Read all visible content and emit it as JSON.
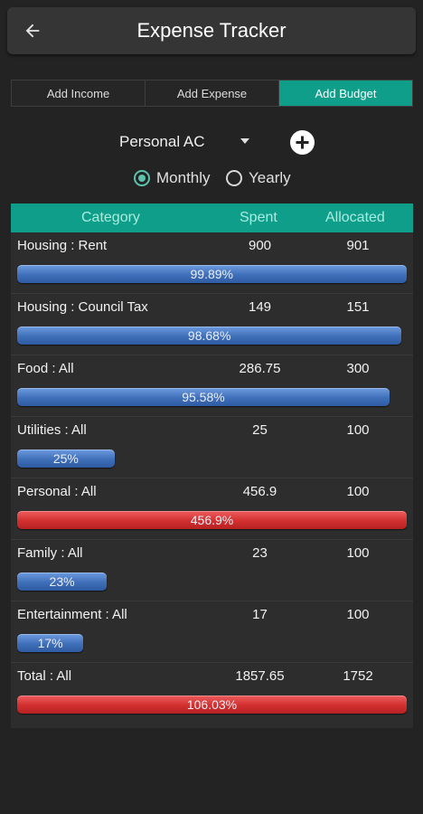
{
  "appbar": {
    "title": "Expense Tracker",
    "back_icon": "arrow-left-icon"
  },
  "tabs": [
    {
      "label": "Add Income",
      "active": false
    },
    {
      "label": "Add Expense",
      "active": false
    },
    {
      "label": "Add Budget",
      "active": true
    }
  ],
  "account": {
    "selected": "Personal AC",
    "add_icon": "plus-circle-icon"
  },
  "period": {
    "options": [
      {
        "label": "Monthly",
        "checked": true
      },
      {
        "label": "Yearly",
        "checked": false
      }
    ]
  },
  "colors": {
    "accent": "#0f9e8a",
    "bar_normal": "#3f6fb8",
    "bar_over": "#d22f2f",
    "radio": "#5cc3ae"
  },
  "table": {
    "headers": {
      "category": "Category",
      "spent": "Spent",
      "allocated": "Allocated"
    },
    "rows": [
      {
        "category": "Housing : Rent",
        "spent": "900",
        "allocated": "901",
        "percent_label": "99.89%",
        "percent": 99.89
      },
      {
        "category": "Housing : Council Tax",
        "spent": "149",
        "allocated": "151",
        "percent_label": "98.68%",
        "percent": 98.68
      },
      {
        "category": "Food : All",
        "spent": "286.75",
        "allocated": "300",
        "percent_label": "95.58%",
        "percent": 95.58
      },
      {
        "category": "Utilities : All",
        "spent": "25",
        "allocated": "100",
        "percent_label": "25%",
        "percent": 25
      },
      {
        "category": "Personal : All",
        "spent": "456.9",
        "allocated": "100",
        "percent_label": "456.9%",
        "percent": 456.9
      },
      {
        "category": "Family : All",
        "spent": "23",
        "allocated": "100",
        "percent_label": "23%",
        "percent": 23
      },
      {
        "category": "Entertainment : All",
        "spent": "17",
        "allocated": "100",
        "percent_label": "17%",
        "percent": 17
      },
      {
        "category": "Total : All",
        "spent": "1857.65",
        "allocated": "1752",
        "percent_label": "106.03%",
        "percent": 106.03
      }
    ]
  }
}
